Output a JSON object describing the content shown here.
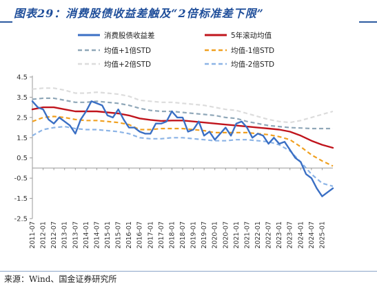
{
  "title": "图表29：消费股债收益差触及“2倍标准差下限”",
  "source": "来源：Wind、国金证券研究所",
  "chart_data": {
    "type": "line",
    "title": "图表29：消费股债收益差触及“2倍标准差下限”",
    "xlabel": "",
    "ylabel": "",
    "ylim": [
      -2.5,
      4.5
    ],
    "yticks": [
      4.5,
      3.5,
      2.5,
      1.5,
      0.5,
      -0.5,
      -1.5,
      -2.5
    ],
    "ytick_labels": [
      "4.5",
      "3.5",
      "2.5",
      "1.5",
      "0.5",
      "-0.5",
      "-1.5",
      "-2.5"
    ],
    "xlim": [
      "2011-07",
      "2025-07"
    ],
    "xtick_labels": [
      "2011-07",
      "2012-01",
      "2012-07",
      "2013-01",
      "2013-07",
      "2014-01",
      "2014-07",
      "2015-01",
      "2015-07",
      "2016-01",
      "2016-07",
      "2017-01",
      "2017-07",
      "2018-01",
      "2018-07",
      "2019-01",
      "2019-07",
      "2020-01",
      "2020-07",
      "2021-01",
      "2021-07",
      "2022-01",
      "2022-07",
      "2023-01",
      "2023-07",
      "2024-01",
      "2024-07",
      "2025-01"
    ],
    "grid": false,
    "legend": "top",
    "series": [
      {
        "name": "消费股债收益差",
        "color": "#3a6fc4",
        "style": "solid",
        "width": 2.4,
        "points": [
          [
            "2011-07",
            3.3
          ],
          [
            "2011-10",
            3.0
          ],
          [
            "2012-01",
            2.9
          ],
          [
            "2012-04",
            2.4
          ],
          [
            "2012-07",
            2.2
          ],
          [
            "2012-10",
            2.5
          ],
          [
            "2013-01",
            2.3
          ],
          [
            "2013-04",
            2.1
          ],
          [
            "2013-07",
            1.7
          ],
          [
            "2013-10",
            2.4
          ],
          [
            "2014-01",
            2.8
          ],
          [
            "2014-04",
            3.3
          ],
          [
            "2014-07",
            3.2
          ],
          [
            "2014-10",
            3.1
          ],
          [
            "2015-01",
            2.6
          ],
          [
            "2015-04",
            2.5
          ],
          [
            "2015-07",
            2.9
          ],
          [
            "2015-10",
            2.4
          ],
          [
            "2016-01",
            2.0
          ],
          [
            "2016-04",
            2.0
          ],
          [
            "2016-07",
            1.8
          ],
          [
            "2016-10",
            1.7
          ],
          [
            "2017-01",
            1.7
          ],
          [
            "2017-04",
            2.2
          ],
          [
            "2017-07",
            2.2
          ],
          [
            "2017-10",
            2.3
          ],
          [
            "2018-01",
            2.8
          ],
          [
            "2018-04",
            2.5
          ],
          [
            "2018-07",
            2.5
          ],
          [
            "2018-10",
            1.8
          ],
          [
            "2019-01",
            1.9
          ],
          [
            "2019-04",
            2.3
          ],
          [
            "2019-07",
            1.6
          ],
          [
            "2019-10",
            1.8
          ],
          [
            "2020-01",
            1.4
          ],
          [
            "2020-04",
            1.7
          ],
          [
            "2020-07",
            2.0
          ],
          [
            "2020-10",
            1.6
          ],
          [
            "2021-01",
            2.2
          ],
          [
            "2021-04",
            2.3
          ],
          [
            "2021-07",
            2.0
          ],
          [
            "2021-10",
            1.5
          ],
          [
            "2022-01",
            1.7
          ],
          [
            "2022-04",
            1.6
          ],
          [
            "2022-07",
            1.2
          ],
          [
            "2022-10",
            1.5
          ],
          [
            "2023-01",
            1.2
          ],
          [
            "2023-04",
            1.3
          ],
          [
            "2023-07",
            0.9
          ],
          [
            "2023-10",
            0.5
          ],
          [
            "2024-01",
            0.3
          ],
          [
            "2024-04",
            -0.3
          ],
          [
            "2024-07",
            -0.5
          ],
          [
            "2024-10",
            -1.0
          ],
          [
            "2025-01",
            -1.4
          ],
          [
            "2025-04",
            -1.2
          ],
          [
            "2025-07",
            -1.0
          ]
        ]
      },
      {
        "name": "5年滚动均值",
        "color": "#c0141c",
        "style": "solid",
        "width": 2.4,
        "points": [
          [
            "2011-07",
            2.9
          ],
          [
            "2012-01",
            3.0
          ],
          [
            "2012-07",
            3.0
          ],
          [
            "2013-01",
            2.9
          ],
          [
            "2013-07",
            2.8
          ],
          [
            "2014-01",
            2.8
          ],
          [
            "2014-07",
            2.8
          ],
          [
            "2015-01",
            2.75
          ],
          [
            "2015-07",
            2.7
          ],
          [
            "2016-01",
            2.6
          ],
          [
            "2016-07",
            2.45
          ],
          [
            "2017-01",
            2.38
          ],
          [
            "2017-07",
            2.33
          ],
          [
            "2018-01",
            2.35
          ],
          [
            "2018-07",
            2.35
          ],
          [
            "2019-01",
            2.3
          ],
          [
            "2019-07",
            2.25
          ],
          [
            "2020-01",
            2.2
          ],
          [
            "2020-07",
            2.15
          ],
          [
            "2021-01",
            2.1
          ],
          [
            "2021-07",
            2.05
          ],
          [
            "2022-01",
            2.0
          ],
          [
            "2022-07",
            1.95
          ],
          [
            "2023-01",
            1.9
          ],
          [
            "2023-07",
            1.8
          ],
          [
            "2024-01",
            1.6
          ],
          [
            "2024-07",
            1.35
          ],
          [
            "2025-01",
            1.15
          ],
          [
            "2025-07",
            1.0
          ]
        ]
      },
      {
        "name": "均值+1倍STD",
        "color": "#8fa7b8",
        "style": "dashed",
        "width": 2.2,
        "points": [
          [
            "2011-07",
            3.4
          ],
          [
            "2012-01",
            3.45
          ],
          [
            "2012-07",
            3.45
          ],
          [
            "2013-01",
            3.35
          ],
          [
            "2013-07",
            3.25
          ],
          [
            "2014-01",
            3.25
          ],
          [
            "2014-07",
            3.3
          ],
          [
            "2015-01",
            3.25
          ],
          [
            "2015-07",
            3.2
          ],
          [
            "2016-01",
            3.1
          ],
          [
            "2016-07",
            2.95
          ],
          [
            "2017-01",
            2.85
          ],
          [
            "2017-07",
            2.8
          ],
          [
            "2018-01",
            2.8
          ],
          [
            "2018-07",
            2.75
          ],
          [
            "2019-01",
            2.7
          ],
          [
            "2019-07",
            2.65
          ],
          [
            "2020-01",
            2.6
          ],
          [
            "2020-07",
            2.5
          ],
          [
            "2021-01",
            2.45
          ],
          [
            "2021-07",
            2.3
          ],
          [
            "2022-01",
            2.2
          ],
          [
            "2022-07",
            2.1
          ],
          [
            "2023-01",
            2.05
          ],
          [
            "2023-07",
            2.0
          ],
          [
            "2024-01",
            1.98
          ],
          [
            "2024-07",
            1.95
          ],
          [
            "2025-01",
            1.95
          ],
          [
            "2025-07",
            1.95
          ]
        ]
      },
      {
        "name": "均值-1倍STD",
        "color": "#f0a020",
        "style": "dashed",
        "width": 2.2,
        "points": [
          [
            "2011-07",
            2.3
          ],
          [
            "2012-01",
            2.5
          ],
          [
            "2012-07",
            2.55
          ],
          [
            "2013-01",
            2.5
          ],
          [
            "2013-07",
            2.4
          ],
          [
            "2014-01",
            2.35
          ],
          [
            "2014-07",
            2.35
          ],
          [
            "2015-01",
            2.3
          ],
          [
            "2015-07",
            2.25
          ],
          [
            "2016-01",
            2.15
          ],
          [
            "2016-07",
            1.9
          ],
          [
            "2017-01",
            1.9
          ],
          [
            "2017-07",
            1.95
          ],
          [
            "2018-01",
            1.95
          ],
          [
            "2018-07",
            1.95
          ],
          [
            "2019-01",
            1.9
          ],
          [
            "2019-07",
            1.85
          ],
          [
            "2020-01",
            1.75
          ],
          [
            "2020-07",
            1.75
          ],
          [
            "2021-01",
            1.75
          ],
          [
            "2021-07",
            1.75
          ],
          [
            "2022-01",
            1.7
          ],
          [
            "2022-07",
            1.65
          ],
          [
            "2023-01",
            1.55
          ],
          [
            "2023-07",
            1.4
          ],
          [
            "2024-01",
            1.05
          ],
          [
            "2024-07",
            0.65
          ],
          [
            "2025-01",
            0.35
          ],
          [
            "2025-07",
            0.1
          ]
        ]
      },
      {
        "name": "均值+2倍STD",
        "color": "#dcdcdc",
        "style": "dashed",
        "width": 2.2,
        "points": [
          [
            "2011-07",
            3.9
          ],
          [
            "2012-01",
            3.95
          ],
          [
            "2012-07",
            3.95
          ],
          [
            "2013-01",
            3.85
          ],
          [
            "2013-07",
            3.7
          ],
          [
            "2014-01",
            3.7
          ],
          [
            "2014-07",
            3.75
          ],
          [
            "2015-01",
            3.7
          ],
          [
            "2015-07",
            3.65
          ],
          [
            "2016-01",
            3.55
          ],
          [
            "2016-07",
            3.35
          ],
          [
            "2017-01",
            3.3
          ],
          [
            "2017-07",
            3.25
          ],
          [
            "2018-01",
            3.25
          ],
          [
            "2018-07",
            3.2
          ],
          [
            "2019-01",
            3.15
          ],
          [
            "2019-07",
            3.1
          ],
          [
            "2020-01",
            3.0
          ],
          [
            "2020-07",
            2.9
          ],
          [
            "2021-01",
            2.85
          ],
          [
            "2021-07",
            2.7
          ],
          [
            "2022-01",
            2.55
          ],
          [
            "2022-07",
            2.4
          ],
          [
            "2023-01",
            2.3
          ],
          [
            "2023-07",
            2.25
          ],
          [
            "2024-01",
            2.35
          ],
          [
            "2024-07",
            2.5
          ],
          [
            "2025-01",
            2.65
          ],
          [
            "2025-07",
            2.8
          ]
        ]
      },
      {
        "name": "均值-2倍STD",
        "color": "#8cb4e6",
        "style": "dashed",
        "width": 2.2,
        "points": [
          [
            "2011-07",
            1.6
          ],
          [
            "2012-01",
            1.9
          ],
          [
            "2012-07",
            2.0
          ],
          [
            "2013-01",
            2.05
          ],
          [
            "2013-07",
            1.95
          ],
          [
            "2014-01",
            1.9
          ],
          [
            "2014-07",
            1.9
          ],
          [
            "2015-01",
            1.85
          ],
          [
            "2015-07",
            1.8
          ],
          [
            "2016-01",
            1.7
          ],
          [
            "2016-07",
            1.5
          ],
          [
            "2017-01",
            1.45
          ],
          [
            "2017-07",
            1.45
          ],
          [
            "2018-01",
            1.5
          ],
          [
            "2018-07",
            1.5
          ],
          [
            "2019-01",
            1.45
          ],
          [
            "2019-07",
            1.4
          ],
          [
            "2020-01",
            1.35
          ],
          [
            "2020-07",
            1.35
          ],
          [
            "2021-01",
            1.4
          ],
          [
            "2021-07",
            1.4
          ],
          [
            "2022-01",
            1.35
          ],
          [
            "2022-07",
            1.3
          ],
          [
            "2023-01",
            1.15
          ],
          [
            "2023-07",
            0.85
          ],
          [
            "2024-01",
            0.3
          ],
          [
            "2024-07",
            -0.3
          ],
          [
            "2025-01",
            -0.75
          ],
          [
            "2025-07",
            -0.9
          ]
        ]
      }
    ]
  }
}
